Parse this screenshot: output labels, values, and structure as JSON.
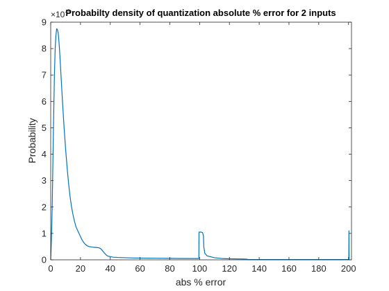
{
  "chart_data": {
    "type": "line",
    "title": "Probabilty density of quantization absolute % error for 2 inputs",
    "xlabel": "abs % error",
    "ylabel": "Probability",
    "y_exponent_label": "×10",
    "y_exponent_power": "-3",
    "xlim": [
      0,
      202
    ],
    "ylim": [
      0,
      9
    ],
    "x_ticks": [
      0,
      20,
      40,
      60,
      80,
      100,
      120,
      140,
      160,
      180,
      200
    ],
    "y_ticks": [
      0,
      1,
      2,
      3,
      4,
      5,
      6,
      7,
      8,
      9
    ],
    "grid": false,
    "line_color": "#0072BD",
    "series": [
      {
        "x": [
          0,
          0.5,
          1,
          1.5,
          2,
          2.5,
          3,
          3.5,
          4,
          4.5,
          5,
          5.5,
          6,
          6.5,
          7,
          8,
          9,
          10,
          11,
          12,
          13,
          14,
          15,
          16,
          17,
          18,
          19,
          20,
          21,
          22,
          23,
          24,
          25,
          26,
          28,
          30,
          32,
          33,
          34,
          35,
          36,
          37,
          38,
          40,
          42,
          45,
          50,
          55,
          60,
          70,
          80,
          90,
          99.5,
          99.6,
          101,
          102,
          102.6,
          102.8,
          103.5,
          105,
          110,
          115,
          120,
          130,
          132,
          132.2,
          140,
          160,
          180,
          200.2,
          200.3,
          200.4,
          200.5
        ],
        "y": [
          0,
          0.8,
          2.0,
          3.8,
          5.5,
          7.0,
          8.0,
          8.5,
          8.75,
          8.72,
          8.6,
          8.3,
          7.9,
          7.4,
          6.9,
          5.9,
          5.0,
          4.2,
          3.5,
          2.9,
          2.4,
          2.0,
          1.7,
          1.45,
          1.25,
          1.12,
          1.0,
          0.88,
          0.76,
          0.67,
          0.6,
          0.55,
          0.52,
          0.5,
          0.48,
          0.47,
          0.46,
          0.44,
          0.4,
          0.33,
          0.26,
          0.2,
          0.15,
          0.12,
          0.1,
          0.09,
          0.08,
          0.07,
          0.065,
          0.06,
          0.055,
          0.05,
          0.05,
          1.05,
          1.05,
          1.03,
          0.9,
          0.5,
          0.25,
          0.15,
          0.08,
          0.05,
          0.04,
          0.03,
          0.025,
          0.01,
          0.01,
          0.01,
          0.01,
          0.01,
          1.1,
          0.01,
          0.01
        ]
      }
    ]
  }
}
